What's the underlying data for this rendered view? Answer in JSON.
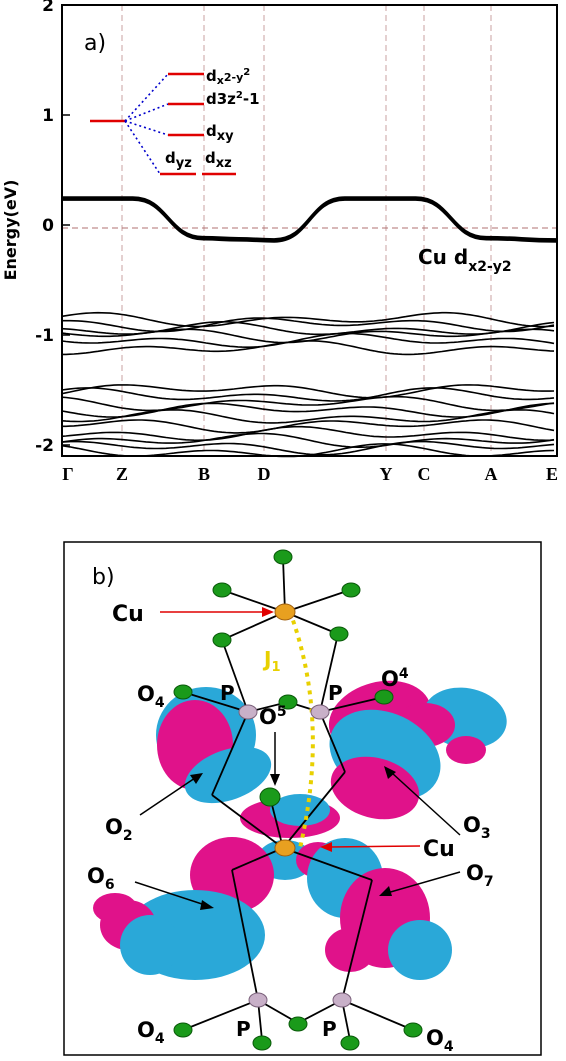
{
  "panel_a": {
    "label": "a)",
    "ylabel": "Energy(eV)",
    "yticks": [
      "2",
      "1",
      "0",
      "-1",
      "-2"
    ],
    "kpoints": [
      "Γ",
      "Z",
      "B",
      "D",
      "Y",
      "C",
      "A",
      "E"
    ],
    "band_label_main": "Cu d",
    "band_label_sub": "x2-y2",
    "levels": [
      {
        "base": "d",
        "sub": "x",
        "rest": "2-y",
        "sup": "2"
      },
      {
        "base": "d",
        "sub": "3z",
        "sup": "2",
        "rest": "-1"
      },
      {
        "base": "d",
        "sub": "xy"
      },
      {
        "base": "d",
        "sub": "yz"
      },
      {
        "base": "d",
        "sub": "xz"
      }
    ],
    "colors": {
      "bands": "#000000",
      "levels": "#e00000",
      "splitting": "#0000cc",
      "grid": "#c8a0a0"
    }
  },
  "chart_data": {
    "type": "line",
    "title": "",
    "xlabel": "",
    "ylabel": "Energy(eV)",
    "ylim": [
      -2.1,
      2.0
    ],
    "x_ticks": [
      "Γ",
      "Z",
      "B",
      "D",
      "Y",
      "C",
      "A",
      "E"
    ],
    "fermi_level": 0,
    "series": [
      {
        "name": "Cu d x2-y2",
        "x": [
          0,
          1,
          2,
          2.5,
          3,
          4,
          5,
          6,
          7
        ],
        "y": [
          0.24,
          0.24,
          -0.12,
          -0.13,
          -0.14,
          0.24,
          0.24,
          -0.12,
          -0.14
        ]
      }
    ]
  },
  "panel_b": {
    "label": "b)",
    "atom_labels": {
      "cu_top": "Cu",
      "cu_mid": "Cu",
      "j": "J",
      "j_sub": "1",
      "p": "P",
      "o": "O",
      "o2": "2",
      "o3": "3",
      "o4": "4",
      "o5": "5",
      "o6": "6",
      "o7": "7"
    },
    "colors": {
      "lobe_pink": "#e0128a",
      "lobe_cyan": "#2aa8d8",
      "oxygen": "#1a9a1a",
      "phosphorus": "#c8b0c8",
      "copper": "#e8a020",
      "exchange": "#e8d000",
      "pointer": "#e00000"
    }
  }
}
